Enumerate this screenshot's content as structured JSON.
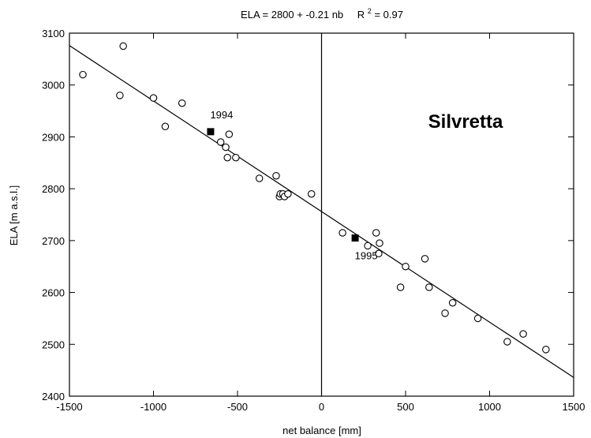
{
  "chart_data": {
    "type": "scatter",
    "title_parts": {
      "equation": "ELA = 2800 + -0.21 nb",
      "r_symbol": "R",
      "r_exponent": "2",
      "r_value": "= 0.97"
    },
    "xlabel": "net balance [mm]",
    "ylabel": "ELA [m a.s.l.]",
    "annotation": "Silvretta",
    "xlim": [
      -1500,
      1500
    ],
    "ylim": [
      2400,
      3100
    ],
    "xticks": [
      -1500,
      -1000,
      -500,
      0,
      500,
      1000,
      1500
    ],
    "yticks": [
      2400,
      2500,
      2600,
      2700,
      2800,
      2900,
      3000,
      3100
    ],
    "x_tick_labels": [
      "-1500",
      "-1000",
      "-500",
      "0",
      "500",
      "1000",
      "1500"
    ],
    "y_tick_labels": [
      "2400",
      "2500",
      "2600",
      "2700",
      "2800",
      "2900",
      "3000",
      "3100"
    ],
    "grid": false,
    "zero_line_x": 0,
    "regression": {
      "intercept": 2756,
      "slope": -0.2133
    },
    "series": [
      {
        "marker": "open-circle",
        "x": [
          -1420,
          -1200,
          -1180,
          -1000,
          -930,
          -830,
          -600,
          -570,
          -560,
          -550,
          -510,
          -370,
          -270,
          -250,
          -245,
          -230,
          -220,
          -200,
          -60,
          125,
          275,
          325,
          340,
          345,
          500,
          470,
          615,
          640,
          735,
          780,
          930,
          1105,
          1200,
          1335
        ],
        "y": [
          3020,
          2980,
          3075,
          2975,
          2920,
          2965,
          2890,
          2880,
          2860,
          2905,
          2860,
          2820,
          2825,
          2785,
          2790,
          2790,
          2785,
          2790,
          2790,
          2715,
          2690,
          2715,
          2675,
          2695,
          2650,
          2610,
          2665,
          2610,
          2560,
          2580,
          2550,
          2505,
          2520,
          2490
        ]
      },
      {
        "marker": "filled-square",
        "points": [
          {
            "x": -660,
            "y": 2910,
            "label": "1994"
          },
          {
            "x": 200,
            "y": 2705,
            "label": "1995"
          }
        ]
      }
    ]
  }
}
